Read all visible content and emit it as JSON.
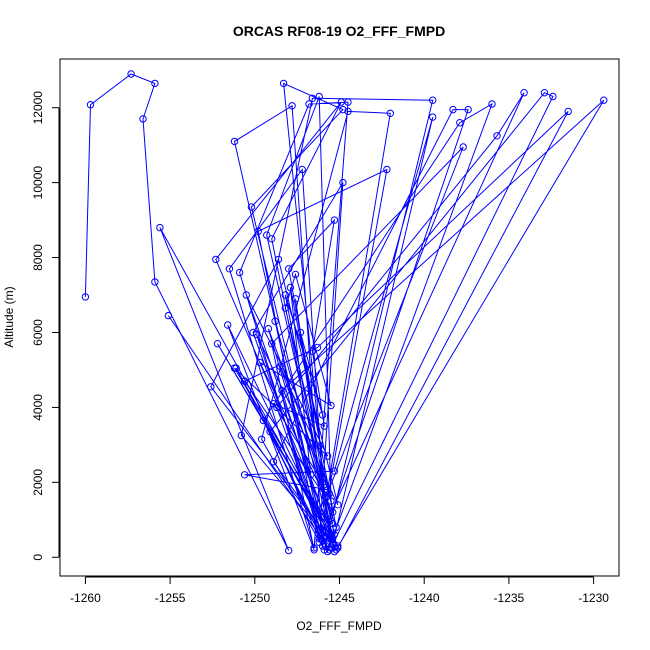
{
  "chart_data": {
    "type": "line",
    "title": "ORCAS RF08-19 O2_FFF_FMPD",
    "xlabel": "O2_FFF_FMPD",
    "ylabel": "Altitude (m)",
    "xlim": [
      -1261.5,
      -1228.5
    ],
    "ylim": [
      -500,
      13300
    ],
    "xticks": [
      -1260,
      -1255,
      -1250,
      -1245,
      -1240,
      -1235,
      -1230
    ],
    "yticks": [
      0,
      2000,
      4000,
      6000,
      8000,
      10000,
      12000
    ],
    "grid": false,
    "color": "#0000ff",
    "marker": "open-circle",
    "series": [
      {
        "points": [
          [
            -1260.0,
            6950
          ],
          [
            -1259.7,
            12080
          ],
          [
            -1257.3,
            12900
          ],
          [
            -1255.9,
            12650
          ],
          [
            -1256.6,
            11700
          ],
          [
            -1255.9,
            7350
          ],
          [
            -1248.0,
            180
          ],
          [
            -1255.6,
            8800
          ],
          [
            -1245.1,
            300
          ],
          [
            -1252.3,
            7950
          ],
          [
            -1244.9,
            12150
          ],
          [
            -1249.0,
            8500
          ],
          [
            -1245.3,
            150
          ],
          [
            -1250.2,
            9350
          ],
          [
            -1244.8,
            11950
          ],
          [
            -1248.3,
            12650
          ],
          [
            -1245.6,
            500
          ],
          [
            -1252.6,
            4550
          ],
          [
            -1248.6,
            7950
          ],
          [
            -1245.1,
            1400
          ],
          [
            -1249.9,
            5950
          ],
          [
            -1245.8,
            300
          ],
          [
            -1251.2,
            11100
          ],
          [
            -1247.8,
            12050
          ],
          [
            -1246.0,
            300
          ],
          [
            -1250.9,
            7600
          ],
          [
            -1246.8,
            12100
          ],
          [
            -1244.5,
            12150
          ],
          [
            -1246.5,
            250
          ],
          [
            -1251.5,
            7700
          ],
          [
            -1247.2,
            10350
          ],
          [
            -1245.8,
            550
          ],
          [
            -1250.1,
            6000
          ],
          [
            -1244.8,
            10000
          ],
          [
            -1246.2,
            400
          ],
          [
            -1249.8,
            8700
          ],
          [
            -1242.2,
            10350
          ],
          [
            -1245.9,
            1100
          ],
          [
            -1250.5,
            7000
          ],
          [
            -1245.7,
            2700
          ],
          [
            -1251.2,
            5050
          ],
          [
            -1245.3,
            600
          ],
          [
            -1249.3,
            8600
          ],
          [
            -1246.2,
            12300
          ],
          [
            -1245.5,
            1500
          ],
          [
            -1248.2,
            6650
          ],
          [
            -1247.6,
            7550
          ],
          [
            -1245.5,
            4050
          ],
          [
            -1249.7,
            5200
          ],
          [
            -1245.4,
            1200
          ],
          [
            -1248.0,
            7700
          ],
          [
            -1245.3,
            9000
          ],
          [
            -1246.6,
            5500
          ],
          [
            -1245.9,
            3500
          ],
          [
            -1248.9,
            4100
          ],
          [
            -1246.0,
            2000
          ],
          [
            -1247.6,
            6900
          ],
          [
            -1246.4,
            3000
          ],
          [
            -1248.5,
            5100
          ],
          [
            -1245.2,
            800
          ],
          [
            -1247.9,
            7200
          ],
          [
            -1246.7,
            2200
          ],
          [
            -1249.2,
            6100
          ],
          [
            -1245.6,
            1700
          ],
          [
            -1247.3,
            6000
          ],
          [
            -1246.0,
            3800
          ],
          [
            -1248.2,
            7000
          ],
          [
            -1245.4,
            500
          ]
        ]
      },
      {
        "points": [
          [
            -1255.1,
            6450
          ],
          [
            -1245.6,
            200
          ],
          [
            -1251.1,
            5050
          ],
          [
            -1245.4,
            350
          ],
          [
            -1250.8,
            3250
          ],
          [
            -1246.6,
            12250
          ],
          [
            -1239.5,
            12200
          ],
          [
            -1245.9,
            200
          ],
          [
            -1249.6,
            3150
          ],
          [
            -1244.5,
            11900
          ],
          [
            -1242.0,
            11850
          ],
          [
            -1245.7,
            1800
          ],
          [
            -1250.6,
            2200
          ],
          [
            -1245.3,
            2300
          ],
          [
            -1239.5,
            11750
          ],
          [
            -1245.4,
            350
          ],
          [
            -1248.9,
            2550
          ],
          [
            -1238.3,
            11950
          ],
          [
            -1237.4,
            11950
          ],
          [
            -1246.0,
            450
          ],
          [
            -1249.5,
            3650
          ],
          [
            -1237.9,
            11600
          ],
          [
            -1236.0,
            12100
          ],
          [
            -1245.7,
            150
          ],
          [
            -1248.7,
            4000
          ],
          [
            -1235.7,
            11250
          ],
          [
            -1234.1,
            12400
          ],
          [
            -1246.2,
            500
          ],
          [
            -1249.1,
            3350
          ],
          [
            -1232.9,
            12400
          ],
          [
            -1232.4,
            12300
          ],
          [
            -1245.5,
            250
          ],
          [
            -1248.4,
            4450
          ],
          [
            -1229.4,
            12200
          ],
          [
            -1245.2,
            200
          ],
          [
            -1251.6,
            6200
          ],
          [
            -1246.5,
            200
          ],
          [
            -1249.0,
            5700
          ],
          [
            -1237.7,
            10950
          ],
          [
            -1245.8,
            1600
          ],
          [
            -1250.6,
            4700
          ],
          [
            -1246.3,
            5600
          ],
          [
            -1231.5,
            11900
          ],
          [
            -1245.1,
            250
          ],
          [
            -1252.2,
            5700
          ],
          [
            -1246.4,
            1300
          ],
          [
            -1248.8,
            6300
          ],
          [
            -1245.4,
            900
          ]
        ]
      }
    ]
  }
}
